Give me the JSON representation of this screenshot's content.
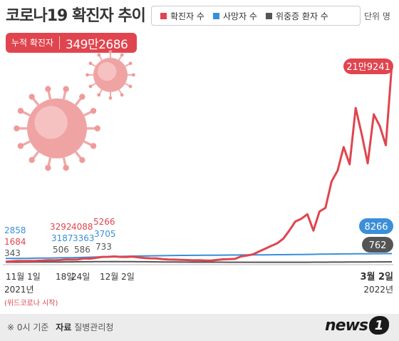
{
  "title": "코로나19 확진자 추이",
  "cumulative": {
    "label": "누적 확진자",
    "value": "349만2686"
  },
  "legend": [
    {
      "label": "확진자 수",
      "color": "#e0454f"
    },
    {
      "label": "사망자 수",
      "color": "#3a8fd8"
    },
    {
      "label": "위중증 환자 수",
      "color": "#555555"
    }
  ],
  "unit": "단위 명",
  "footer": {
    "note": "※ 0시 기준",
    "source_label": "자료",
    "source": "질병관리청"
  },
  "logo": {
    "text": "news",
    "num": "1"
  },
  "chart_data": {
    "type": "line",
    "x_start": "11월 1일",
    "x_end": "3월 2일",
    "x_labels": [
      "11월 1일",
      "18일",
      "24일",
      "12월 2일",
      "3월 2일"
    ],
    "year_labels": [
      "2021년",
      "2022년"
    ],
    "start_note": "(위드코로나 시작)",
    "annotation_groups": [
      {
        "confirmed": "1684",
        "deaths": "2858",
        "critical": "343"
      },
      {
        "confirmed": "3292",
        "deaths": "3187",
        "critical": "506"
      },
      {
        "confirmed": "4088",
        "deaths": "3363",
        "critical": "586"
      },
      {
        "confirmed": "5266",
        "deaths": "3705",
        "critical": "733"
      }
    ],
    "end_labels": {
      "confirmed": "21만9241",
      "deaths": "8266",
      "critical": "762"
    },
    "series": [
      {
        "name": "확진자 수",
        "color": "#e0454f",
        "values": [
          1684,
          2200,
          2500,
          2400,
          2600,
          2700,
          2900,
          3292,
          3200,
          3500,
          4088,
          3900,
          4200,
          5266,
          5000,
          6000,
          7000,
          7100,
          7500,
          7000,
          6900,
          7300,
          6500,
          5800,
          5400,
          5300,
          4500,
          4200,
          4000,
          3800,
          3500,
          3200,
          3300,
          3100,
          3000,
          3600,
          4300,
          4500,
          4800,
          7500,
          8500,
          9800,
          13000,
          16000,
          19000,
          22000,
          27000,
          36000,
          46000,
          49000,
          54000,
          36000,
          57000,
          61000,
          90000,
          102000,
          128000,
          109000,
          171000,
          142000,
          110000,
          164000,
          151000,
          130000,
          219241
        ]
      },
      {
        "name": "사망자 수",
        "color": "#3a8fd8",
        "values": [
          2858,
          2890,
          2950,
          3000,
          3100,
          3187,
          3300,
          3363,
          3450,
          3600,
          3705,
          3800,
          3950,
          4100,
          4300,
          4500,
          4700,
          4900,
          5100,
          5200,
          5350,
          5500,
          5600,
          5700,
          5800,
          5900,
          6000,
          6100,
          6200,
          6250,
          6300,
          6350,
          6400,
          6450,
          6500,
          6550,
          6600,
          6650,
          6700,
          6750,
          6800,
          6850,
          6900,
          6950,
          7000,
          7050,
          7100,
          7150,
          7200,
          7300,
          7400,
          7500,
          7600,
          7700,
          7800,
          7850,
          7900,
          7950,
          8000,
          8050,
          8100,
          8150,
          8200,
          8230,
          8266
        ]
      },
      {
        "name": "위중증 환자 수",
        "color": "#555555",
        "values": [
          343,
          380,
          420,
          470,
          506,
          540,
          570,
          586,
          620,
          660,
          700,
          733,
          780,
          830,
          880,
          940,
          990,
          1050,
          1080,
          1060,
          1020,
          970,
          900,
          850,
          780,
          700,
          650,
          600,
          550,
          500,
          450,
          420,
          400,
          390,
          380,
          370,
          360,
          350,
          340,
          330,
          320,
          310,
          300,
          290,
          285,
          280,
          280,
          290,
          300,
          320,
          350,
          380,
          400,
          420,
          450,
          480,
          510,
          540,
          570,
          600,
          650,
          700,
          720,
          740,
          762
        ]
      }
    ],
    "ylim": [
      0,
      230000
    ]
  }
}
